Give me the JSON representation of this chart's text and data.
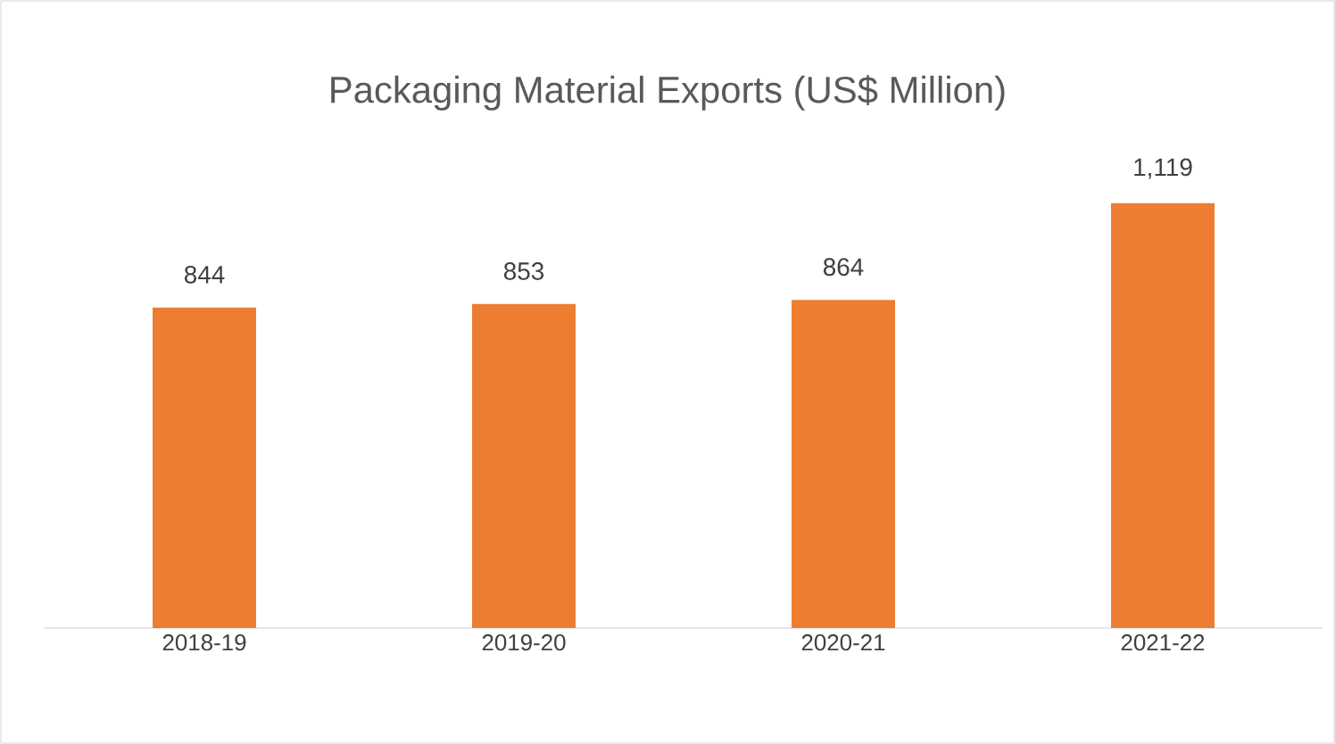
{
  "chart_data": {
    "type": "bar",
    "title": "Packaging Material Exports (US$ Million)",
    "categories": [
      "2018-19",
      "2019-20",
      "2020-21",
      "2021-22"
    ],
    "values": [
      844,
      853,
      864,
      1119
    ],
    "value_labels": [
      "844",
      "853",
      "864",
      "1,119"
    ],
    "color": "#ed7d31",
    "tick_labels": "x"
  }
}
